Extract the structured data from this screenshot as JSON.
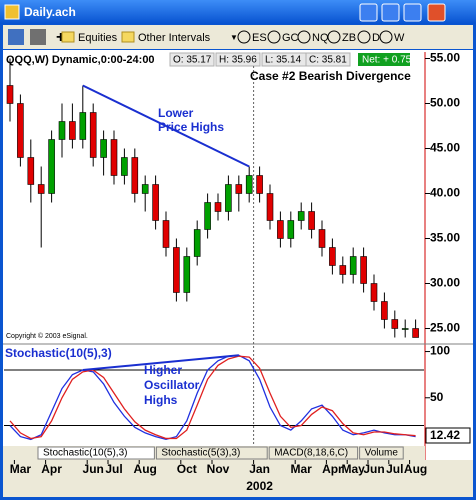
{
  "window": {
    "title": "Daily.ach"
  },
  "toolbar": {
    "buttons": [
      "Equities",
      "Other Intervals",
      "ES",
      "GC",
      "NQ",
      "ZB",
      "D",
      "W"
    ]
  },
  "info_bar": {
    "symbol": "QQQ,W) Dynamic,0:00-24:00",
    "open": "O: 35.17",
    "high": "H: 35.96",
    "low": "L: 35.14",
    "close": "C: 35.81",
    "net": "Net: + 0.75"
  },
  "chart_data": [
    {
      "type": "candlestick",
      "annotations": [
        "Case #2 Bearish Divergence",
        "Lower",
        "Price Highs",
        "Copyright © 2003 eSignal."
      ],
      "open": [
        52,
        50,
        44,
        41,
        40,
        46,
        48,
        46,
        49,
        44,
        46,
        42,
        44,
        40,
        41,
        37,
        34,
        29,
        33,
        36,
        39,
        38,
        41,
        40,
        42,
        40,
        37,
        35,
        37,
        38,
        36,
        34,
        32,
        31,
        33,
        30,
        28,
        26,
        25,
        25
      ],
      "high": [
        55,
        51,
        46,
        43,
        47,
        50,
        50,
        52,
        50,
        47,
        47,
        45,
        45,
        42,
        42,
        38,
        35,
        34,
        37,
        40,
        40,
        42,
        42,
        43,
        43,
        41,
        38,
        38,
        39,
        39,
        37,
        35,
        33,
        34,
        34,
        31,
        29,
        27,
        26,
        26
      ],
      "low": [
        48,
        43,
        39,
        34,
        39,
        44,
        45,
        45,
        43,
        42,
        41,
        41,
        39,
        38,
        36,
        33,
        28,
        28,
        32,
        35,
        37,
        37,
        38,
        39,
        39,
        36,
        34,
        34,
        36,
        35,
        33,
        31,
        30,
        30,
        29,
        27,
        25,
        24,
        24,
        24
      ],
      "close": [
        50,
        44,
        41,
        40,
        46,
        48,
        46,
        49,
        44,
        46,
        42,
        44,
        40,
        41,
        37,
        34,
        29,
        33,
        36,
        39,
        38,
        41,
        40,
        42,
        40,
        37,
        35,
        37,
        38,
        36,
        34,
        32,
        31,
        33,
        30,
        28,
        26,
        25,
        25,
        24
      ],
      "up_color": "#00a000",
      "down_color": "#e00000",
      "trend_color": "#1a2fd0",
      "ylim": [
        23.5,
        55.5
      ],
      "yticks": [
        {
          "value": 25,
          "label": "25.00"
        },
        {
          "value": 30,
          "label": "30.00"
        },
        {
          "value": 35,
          "label": "35.00"
        },
        {
          "value": 40,
          "label": "40.00"
        },
        {
          "value": 45,
          "label": "45.00"
        },
        {
          "value": 50,
          "label": "50.00"
        },
        {
          "value": 55,
          "label": "55.00"
        }
      ],
      "xticks": [
        {
          "value": 1,
          "label": "Mar"
        },
        {
          "value": 4,
          "label": "Apr"
        },
        {
          "value": 8,
          "label": "Jun"
        },
        {
          "value": 10,
          "label": "Jul"
        },
        {
          "value": 13,
          "label": "Aug"
        },
        {
          "value": 17,
          "label": "Oct"
        },
        {
          "value": 20,
          "label": "Nov"
        },
        {
          "value": 24,
          "label": "Jan"
        },
        {
          "value": 28,
          "label": "Mar"
        },
        {
          "value": 31,
          "label": "Apr"
        },
        {
          "value": 33,
          "label": "May"
        },
        {
          "value": 35,
          "label": "Jun"
        },
        {
          "value": 37,
          "label": "Jul"
        },
        {
          "value": 39,
          "label": "Aug"
        }
      ],
      "year_label": "2002"
    },
    {
      "type": "line",
      "title": "Stochastic(10(5),3)",
      "annotations": [
        "Higher",
        "Oscillator",
        "Highs"
      ],
      "last_value": "12.42",
      "series": [
        {
          "color": "#2030e0",
          "values": [
            20,
            8,
            5,
            10,
            35,
            60,
            75,
            80,
            78,
            65,
            45,
            30,
            18,
            12,
            8,
            5,
            8,
            25,
            55,
            80,
            90,
            95,
            96,
            90,
            70,
            40,
            20,
            15,
            25,
            38,
            42,
            30,
            15,
            10,
            12,
            15,
            12,
            10,
            10,
            8
          ]
        },
        {
          "color": "#e02020",
          "values": [
            25,
            12,
            6,
            8,
            25,
            50,
            70,
            78,
            80,
            72,
            55,
            38,
            24,
            15,
            10,
            6,
            6,
            15,
            42,
            70,
            85,
            92,
            95,
            94,
            82,
            55,
            30,
            18,
            20,
            32,
            40,
            36,
            22,
            12,
            10,
            13,
            13,
            11,
            10,
            9
          ]
        }
      ],
      "levels": [
        20,
        80
      ],
      "ylim": [
        0,
        106
      ],
      "yticks": [
        50,
        100
      ]
    }
  ],
  "tabs": [
    "Stochastic(10(5),3)",
    "Stochastic(5(3),3)",
    "MACD(8,18,6,C)",
    "Volume"
  ]
}
